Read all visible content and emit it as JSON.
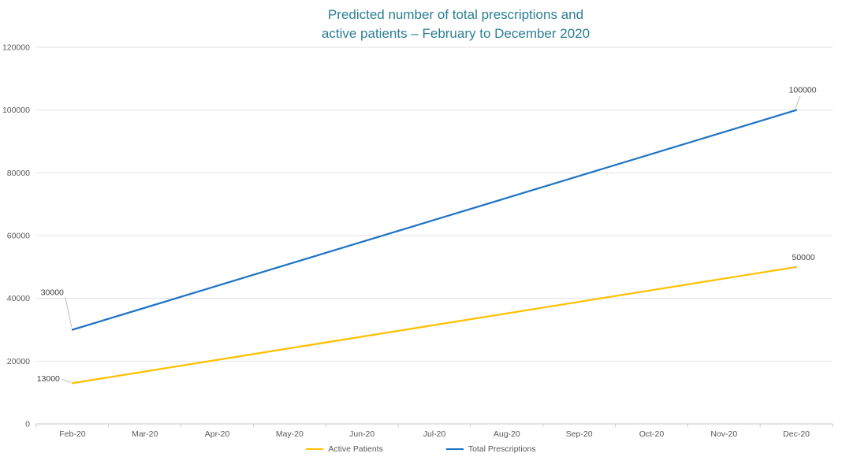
{
  "chart_data": {
    "type": "line",
    "title": "Predicted number of total prescriptions and active patients – February to December 2020",
    "title_lines": [
      "Predicted number of total prescriptions and",
      "active patients – February to December 2020"
    ],
    "categories": [
      "Feb-20",
      "Mar-20",
      "Apr-20",
      "May-20",
      "Jun-20",
      "Jul-20",
      "Aug-20",
      "Sep-20",
      "Oct-20",
      "Nov-20",
      "Dec-20"
    ],
    "series": [
      {
        "name": "Active Patients",
        "color": "#FFC000",
        "values": [
          13000,
          16700,
          20400,
          24100,
          27800,
          31500,
          35200,
          38900,
          42600,
          46300,
          50000
        ]
      },
      {
        "name": "Total Prescriptions",
        "color": "#1F74C4",
        "values": [
          30000,
          37000,
          44000,
          51000,
          58000,
          65000,
          72000,
          79000,
          86000,
          93000,
          100000
        ]
      }
    ],
    "xlabel": "",
    "ylabel": "",
    "ylim": [
      0,
      120000
    ],
    "ytick_interval": 20000,
    "ytick_labels": [
      "0",
      "20000",
      "40000",
      "60000",
      "80000",
      "100000",
      "120000"
    ],
    "grid": true,
    "legend_position": "bottom",
    "annotations": [
      {
        "series": "Total Prescriptions",
        "point": "first",
        "text": "30000"
      },
      {
        "series": "Total Prescriptions",
        "point": "last",
        "text": "100000"
      },
      {
        "series": "Active Patients",
        "point": "first",
        "text": "13000"
      },
      {
        "series": "Active Patients",
        "point": "last",
        "text": "50000"
      }
    ],
    "colors": {
      "title": "#2C7F93",
      "axis_text": "#595959",
      "gridline": "#E2E2E2",
      "axis_line": "#C9C9C9",
      "leader": "#BFBFBF",
      "data_label": "#3F3F3F"
    }
  }
}
